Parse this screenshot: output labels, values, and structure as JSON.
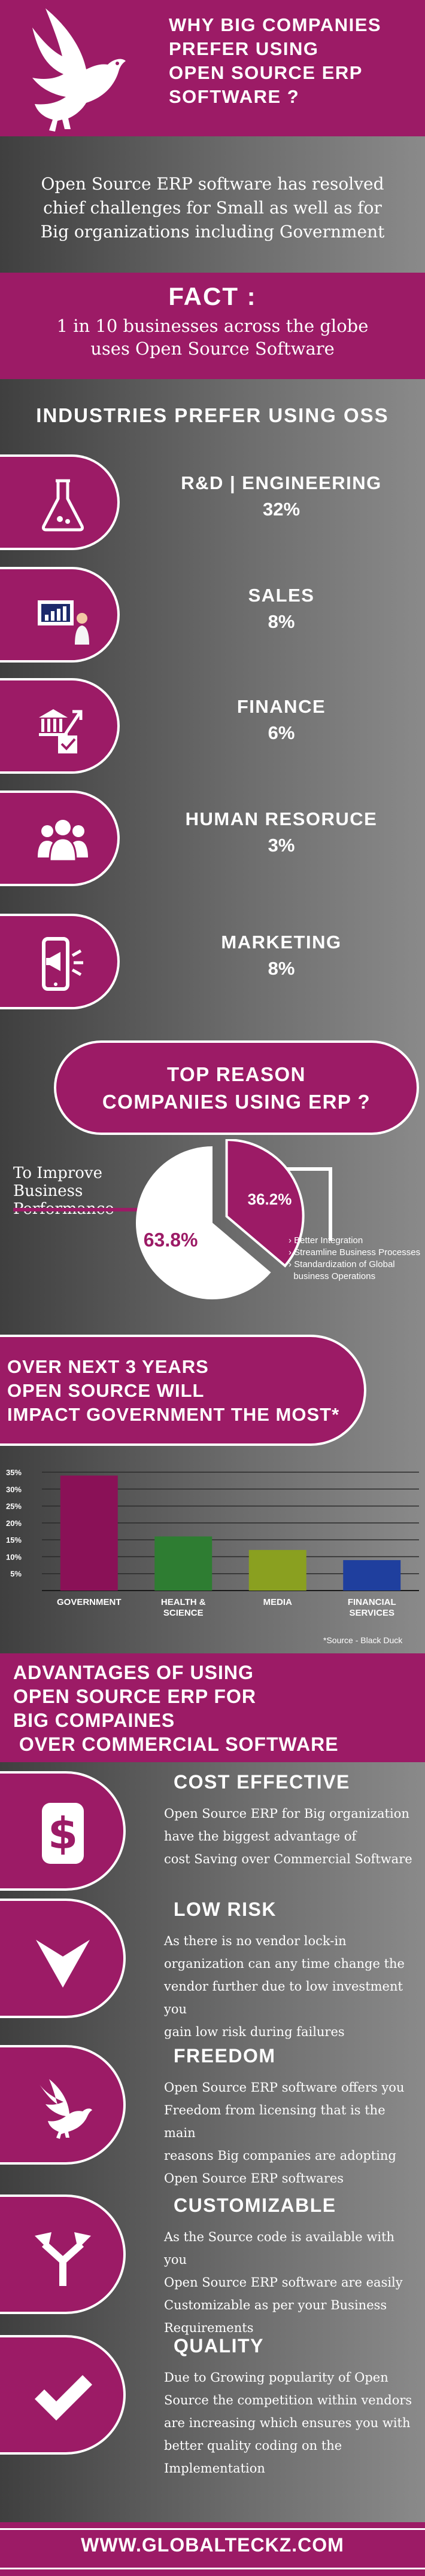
{
  "header": {
    "title_lines": [
      "Why Big  Companies",
      "prefer using",
      "Open Source ERP",
      "software ?"
    ]
  },
  "intro": {
    "lines": [
      "Open Source ERP software has resolved",
      "chief challenges for Small as well as for",
      "Big organizations including  Government"
    ]
  },
  "fact": {
    "title": "Fact :",
    "lines": [
      "1 in 10 businesses across the globe",
      "uses Open Source Software"
    ]
  },
  "industries": {
    "title": "Industries prefer using OSS",
    "items": [
      {
        "name": "R&D | Engineering",
        "percent": "32%",
        "icon": "flask-icon"
      },
      {
        "name": "Sales",
        "percent": "8%",
        "icon": "presentation-chart-icon"
      },
      {
        "name": "Finance",
        "percent": "6%",
        "icon": "finance-icon"
      },
      {
        "name": "HUman resoruce",
        "percent": "3%",
        "icon": "people-icon"
      },
      {
        "name": "Marketing",
        "percent": "8%",
        "icon": "megaphone-phone-icon"
      }
    ]
  },
  "top_reason": {
    "title_lines": [
      "Top Reason",
      "Companies using ERP ?"
    ],
    "left_label": "To Improve Business Performance",
    "notes": [
      "Better Integration",
      "Streamline Business Processes",
      "Standardization of Global",
      "business Operations"
    ]
  },
  "chart_data": [
    {
      "type": "pie",
      "title": "",
      "slices": [
        {
          "label": "To Improve Business Performance",
          "value": 63.8,
          "display": "63.8%",
          "color": "#ffffff"
        },
        {
          "label": "Better Integration / Streamline Business Processes / Standardization of Global business Operations",
          "value": 36.2,
          "display": "36.2%",
          "color": "#9c1b66"
        }
      ]
    },
    {
      "type": "bar",
      "title": "",
      "categories": [
        "Government",
        "Health & Science",
        "Media",
        "Financial Services"
      ],
      "category_lines": [
        [
          "GOVERNMENT"
        ],
        [
          "HEALTH &",
          "SCIENCE"
        ],
        [
          "MEDIA"
        ],
        [
          "FINANCIAL",
          "SERVICES"
        ]
      ],
      "values": [
        34,
        16,
        12,
        9
      ],
      "colors": [
        "#8a1157",
        "#2e7d32",
        "#8aa020",
        "#1f3f9e"
      ],
      "ylim": [
        0,
        35
      ],
      "yticks": [
        "35%",
        "30%",
        "25%",
        "20%",
        "15%",
        "10%",
        "5%"
      ],
      "grid": true
    }
  ],
  "over_next": {
    "lines": [
      "Over Next 3 Years",
      "Open Source will",
      "impact Government the Most*"
    ],
    "source": "*Source - Black Duck"
  },
  "advantages": {
    "title_lines": [
      "Advantages of Using",
      "Open Source ERP for",
      "Big Compaines",
      " over Commercial Software"
    ],
    "items": [
      {
        "heading": "Cost Effective",
        "icon": "dollar-icon",
        "lines": [
          "Open Source ERP for Big organization",
          "have the biggest advantage of",
          "cost Saving over Commercial Software"
        ]
      },
      {
        "heading": "Low Risk",
        "icon": "down-arrow-icon",
        "lines": [
          "As there is no vendor lock-in",
          "organization can any time change the",
          "vendor further due to low investment you",
          "gain low risk during failures"
        ]
      },
      {
        "heading": "Freedom",
        "icon": "dove-icon",
        "lines": [
          "Open Source ERP software offers you",
          "Freedom from licensing that is the main",
          "reasons Big companies are adopting",
          "Open Source ERP softwares"
        ]
      },
      {
        "heading": "Customizable",
        "icon": "split-arrows-icon",
        "lines": [
          "As the Source code is available with you",
          "Open Source ERP software are easily",
          "Customizable as per your Business",
          "Requirements"
        ]
      },
      {
        "heading": "Quality",
        "icon": "checkmark-icon",
        "lines": [
          "Due to Growing popularity of Open",
          "Source the competition within vendors",
          "are increasing which ensures you with",
          "better quality coding on the",
          "Implementation"
        ]
      }
    ]
  },
  "footer": {
    "url": "www.globalteckz.com"
  },
  "colors": {
    "brand": "#9c1b66",
    "background_dark": "#3f3f3f",
    "background_light": "#8a8a8a"
  }
}
